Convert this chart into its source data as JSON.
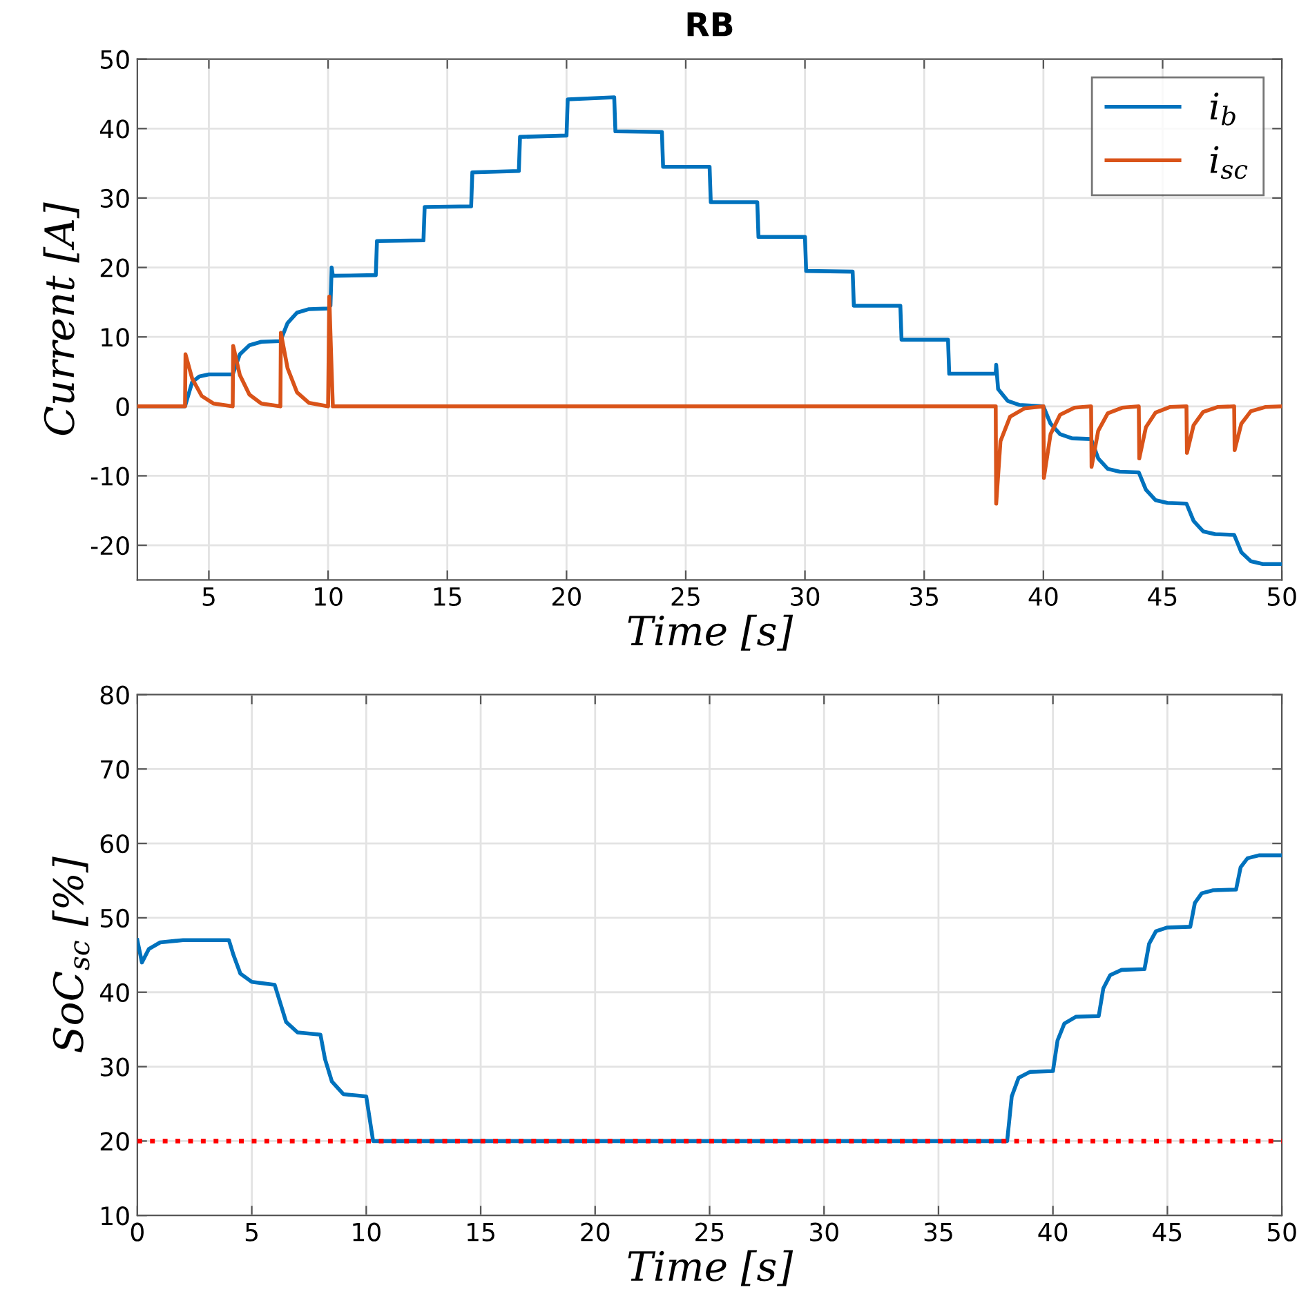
{
  "chart_data": [
    {
      "type": "line",
      "title": "RB",
      "xlabel": "Time [s]",
      "ylabel": "Current [A]",
      "xlim": [
        2,
        50
      ],
      "xticks": [
        5,
        10,
        15,
        20,
        25,
        30,
        35,
        40,
        45,
        50
      ],
      "ylim": [
        -25,
        50
      ],
      "yticks": [
        -20,
        -10,
        0,
        10,
        20,
        30,
        40,
        50
      ],
      "grid": true,
      "legend": "top right",
      "line_style": "solid",
      "marker": "none",
      "series": [
        {
          "name": "i$_{b}$",
          "color": "#0072bd",
          "x": [
            2,
            4,
            4.3,
            4.6,
            5,
            6,
            6.3,
            6.7,
            7.2,
            8,
            8.3,
            8.7,
            9.2,
            10,
            10.1,
            10.15,
            10.2,
            12,
            12.05,
            14,
            14.05,
            16,
            16.05,
            18,
            18.05,
            20,
            20.05,
            22,
            22.05,
            24,
            24.05,
            26,
            26.05,
            28,
            28.05,
            30,
            30.05,
            32,
            32.05,
            34,
            34.05,
            36,
            36.05,
            38,
            38.02,
            38.1,
            38.5,
            39,
            40,
            40.3,
            40.7,
            41.2,
            42,
            42.3,
            42.7,
            43.2,
            44,
            44.3,
            44.7,
            45.2,
            46,
            46.3,
            46.7,
            47.2,
            48,
            48.3,
            48.7,
            49.2,
            50
          ],
          "values": [
            0,
            0,
            3.5,
            4.3,
            4.6,
            4.6,
            7.5,
            8.8,
            9.3,
            9.4,
            12,
            13.5,
            14,
            14.1,
            14.5,
            20,
            18.8,
            18.9,
            23.8,
            23.9,
            28.7,
            28.8,
            33.7,
            33.9,
            38.8,
            39,
            44.2,
            44.5,
            39.6,
            39.5,
            34.5,
            34.5,
            29.4,
            29.4,
            24.4,
            24.4,
            19.5,
            19.4,
            14.5,
            14.5,
            9.6,
            9.6,
            4.7,
            4.7,
            6,
            2.5,
            0.8,
            0.2,
            0,
            -2.5,
            -4,
            -4.6,
            -4.7,
            -7.5,
            -9,
            -9.4,
            -9.5,
            -12,
            -13.5,
            -13.9,
            -14,
            -16.5,
            -18,
            -18.4,
            -18.5,
            -21,
            -22.3,
            -22.7,
            -22.7
          ]
        },
        {
          "name": "i$_{sc}$",
          "color": "#d95319",
          "x": [
            2,
            4,
            4.02,
            4.3,
            4.7,
            5.2,
            6,
            6.02,
            6.3,
            6.7,
            7.2,
            8,
            8.02,
            8.3,
            8.7,
            9.2,
            10,
            10.05,
            10.15,
            10.2,
            38,
            38.02,
            38.2,
            38.6,
            39.2,
            40,
            40.02,
            40.3,
            40.7,
            41.3,
            42,
            42.02,
            42.3,
            42.7,
            43.3,
            44,
            44.02,
            44.3,
            44.7,
            45.3,
            46,
            46.02,
            46.3,
            46.7,
            47.3,
            48,
            48.02,
            48.3,
            48.7,
            49.3,
            50
          ],
          "values": [
            0,
            0,
            7.5,
            4,
            1.5,
            0.4,
            0,
            8.7,
            4.5,
            1.7,
            0.4,
            0,
            10.6,
            5.5,
            2,
            0.5,
            0,
            15.8,
            5,
            0,
            0,
            -14,
            -5,
            -1.5,
            -0.3,
            0,
            -10.3,
            -4,
            -1.2,
            -0.2,
            0,
            -8.7,
            -3.5,
            -1,
            -0.2,
            0,
            -7.5,
            -3,
            -0.9,
            -0.1,
            0,
            -6.7,
            -2.7,
            -0.8,
            -0.1,
            0,
            -6.3,
            -2.5,
            -0.7,
            -0.1,
            0
          ]
        }
      ]
    },
    {
      "type": "line",
      "xlabel": "Time [s]",
      "ylabel": "SoC$_{sc}$ [%]",
      "xlim": [
        0,
        50
      ],
      "xticks": [
        0,
        5,
        10,
        15,
        20,
        25,
        30,
        35,
        40,
        45,
        50
      ],
      "ylim": [
        10,
        80
      ],
      "yticks": [
        10,
        20,
        30,
        40,
        50,
        60,
        70,
        80
      ],
      "grid": true,
      "line_style": "solid",
      "marker": "none",
      "ref_lines": [
        {
          "axis": "y",
          "value": 20,
          "color": "#ff0000",
          "line_style": "dotted"
        }
      ],
      "series": [
        {
          "color": "#0072bd",
          "x": [
            0,
            0.2,
            0.5,
            1,
            2,
            4,
            4.2,
            4.5,
            5,
            6,
            6.2,
            6.5,
            7,
            8,
            8.2,
            8.5,
            9,
            10,
            10.3,
            38,
            38.2,
            38.5,
            39,
            40,
            40.2,
            40.5,
            41,
            42,
            42.2,
            42.5,
            43,
            44,
            44.2,
            44.5,
            45,
            46,
            46.2,
            46.5,
            47,
            48,
            48.2,
            48.5,
            49,
            50
          ],
          "values": [
            47,
            44,
            45.8,
            46.7,
            47,
            47,
            45,
            42.5,
            41.4,
            41,
            39,
            36,
            34.6,
            34.3,
            31,
            28,
            26.3,
            26,
            20,
            20,
            26,
            28.5,
            29.3,
            29.4,
            33.5,
            35.8,
            36.7,
            36.8,
            40.5,
            42.3,
            43,
            43.1,
            46.5,
            48.2,
            48.7,
            48.8,
            52,
            53.3,
            53.7,
            53.8,
            56.8,
            58,
            58.4,
            58.4
          ]
        }
      ]
    }
  ]
}
